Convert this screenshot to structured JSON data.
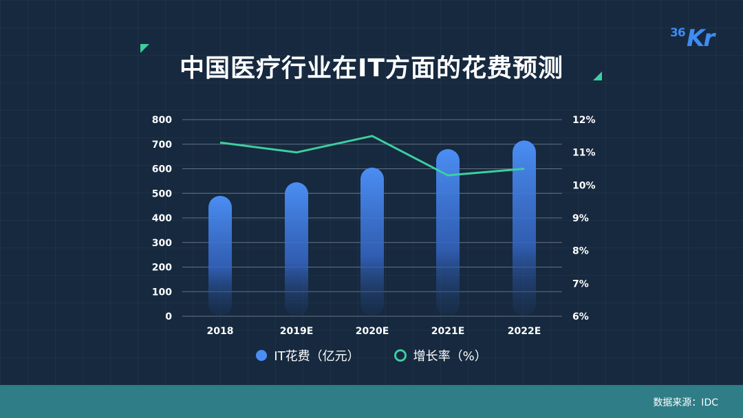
{
  "title": "中国医疗行业在IT方面的花费预测",
  "logo": {
    "num": "36",
    "letters": "Kr"
  },
  "source": "数据来源：IDC",
  "legend": {
    "bar_label": "IT花费（亿元）",
    "line_label": "增长率（%）"
  },
  "colors": {
    "bar": "#4b8ef3",
    "line": "#3ccf9f",
    "footer": "#2f7d86",
    "background": "#16293f"
  },
  "chart_data": {
    "type": "bar",
    "categories": [
      "2018",
      "2019E",
      "2020E",
      "2021E",
      "2022E"
    ],
    "series": [
      {
        "name": "IT花费（亿元）",
        "type": "bar",
        "axis": "left",
        "values": [
          490,
          545,
          605,
          680,
          715
        ]
      },
      {
        "name": "增长率（%）",
        "type": "line",
        "axis": "right",
        "values": [
          11.3,
          11.0,
          11.5,
          10.3,
          10.5
        ]
      }
    ],
    "ylim": [
      0,
      800
    ],
    "y_ticks": [
      "0",
      "100",
      "200",
      "300",
      "400",
      "500",
      "600",
      "700",
      "800"
    ],
    "y2lim": [
      6,
      12
    ],
    "y2_ticks": [
      "6%",
      "7%",
      "8%",
      "9%",
      "10%",
      "11%",
      "12%"
    ],
    "grid": true,
    "legend_position": "bottom"
  }
}
